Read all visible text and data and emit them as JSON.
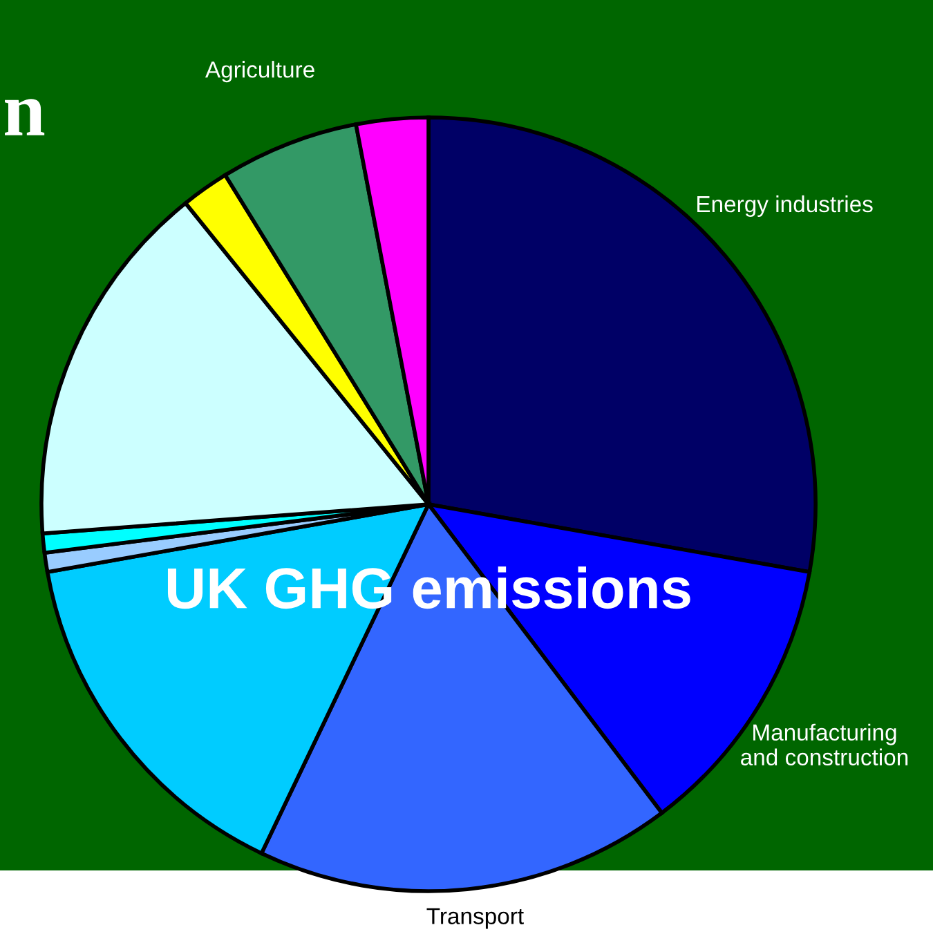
{
  "chart_data": {
    "type": "pie",
    "title": "UK GHG emissions",
    "categories": [
      "Energy industries",
      "Manufacturing\nand construction",
      "Transport",
      null,
      null,
      null,
      null,
      null,
      "Agriculture",
      null
    ],
    "values": [
      27.8,
      11.9,
      17.4,
      15.1,
      0.8,
      0.8,
      15.4,
      2.0,
      5.8,
      3.0
    ],
    "colors": [
      "#000066",
      "#0000ff",
      "#3366ff",
      "#00ccff",
      "#99ccff",
      "#00ffff",
      "#ccffff",
      "#ffff00",
      "#339966",
      "#ff00ff"
    ],
    "annotations": [
      "n"
    ]
  }
}
